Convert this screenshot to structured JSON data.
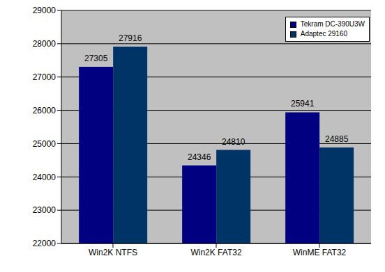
{
  "chart_data": {
    "type": "bar",
    "categories": [
      "Win2K NTFS",
      "Win2K FAT32",
      "WinME FAT32"
    ],
    "series": [
      {
        "name": "Tekram DC-390U3W",
        "color": "#000080",
        "values": [
          27305,
          24346,
          25941
        ]
      },
      {
        "name": "Adaptec 29160",
        "color": "#003366",
        "values": [
          27916,
          24810,
          24885
        ]
      }
    ],
    "ylim": [
      22000,
      29000
    ],
    "yticks": [
      22000,
      23000,
      24000,
      25000,
      26000,
      27000,
      28000,
      29000
    ],
    "grid": true,
    "legend": "upper right",
    "data_labels": true
  }
}
